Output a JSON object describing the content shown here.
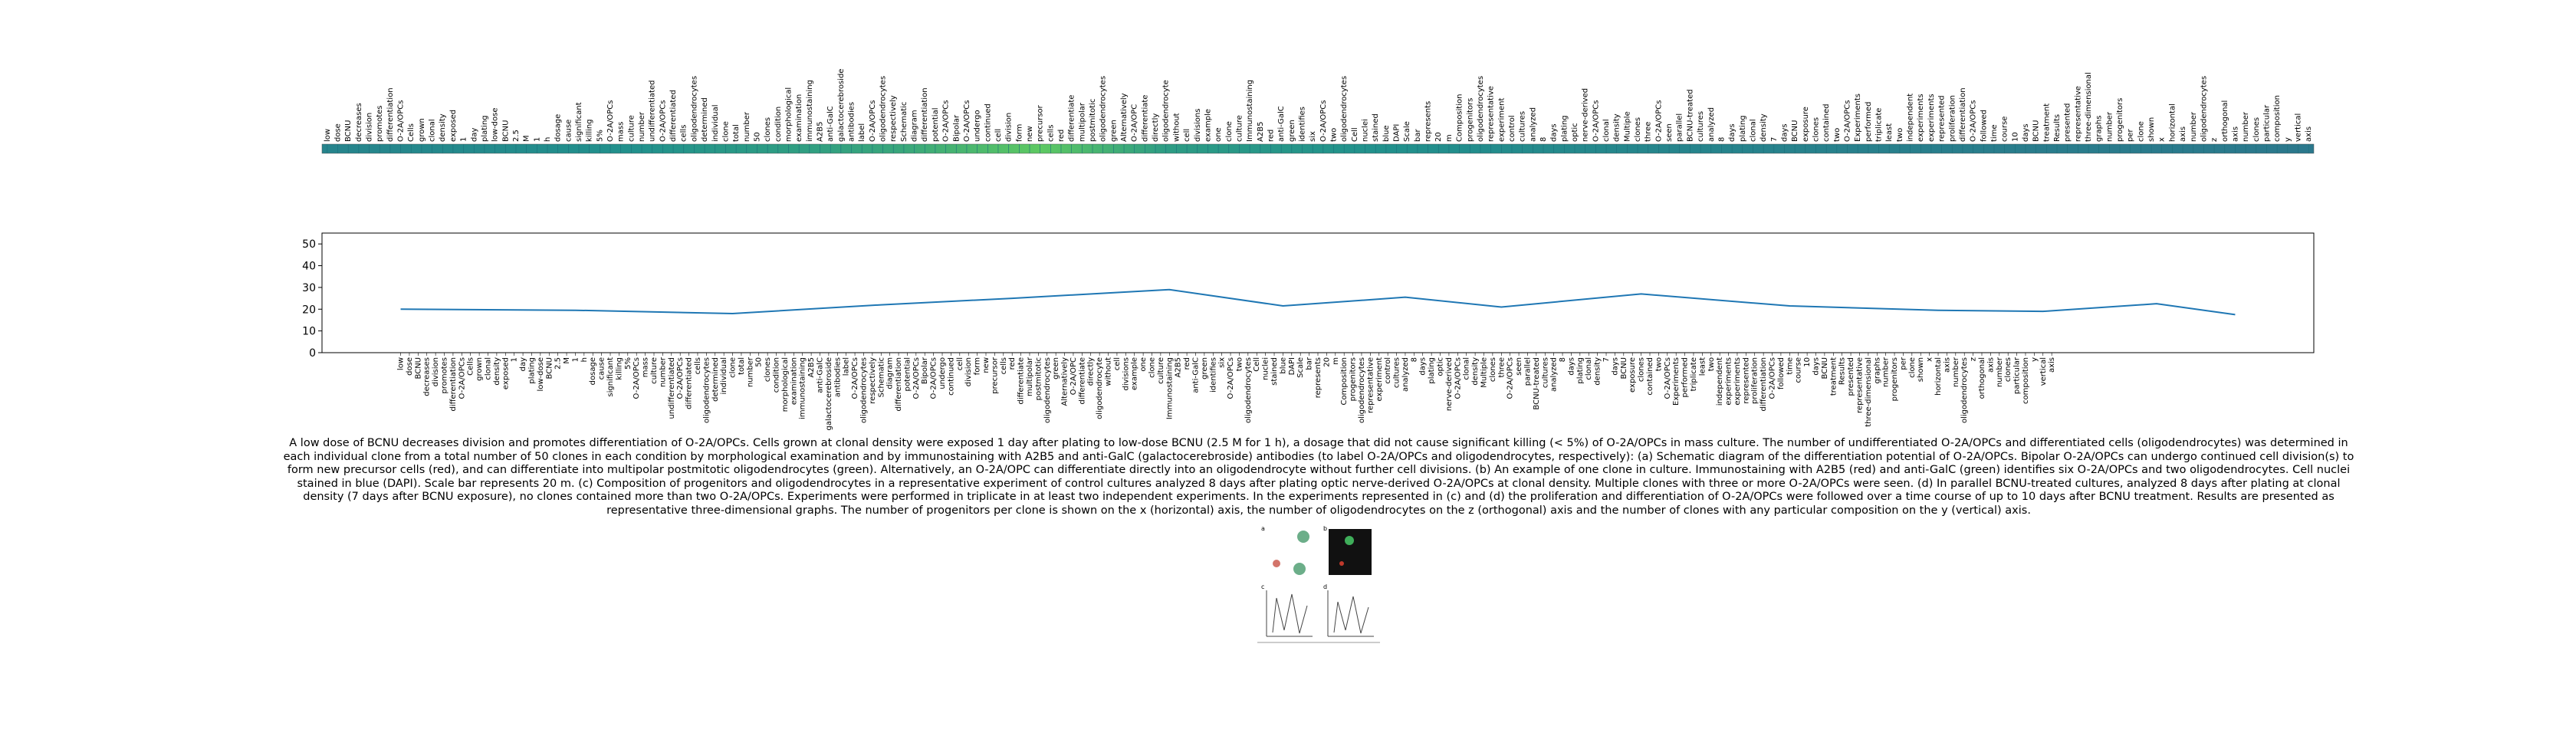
{
  "chart_data": [
    {
      "type": "heatmap",
      "x": [
        0,
        30,
        55,
        68,
        80,
        100,
        130,
        160,
        199
      ],
      "values": [
        0.45,
        0.5,
        0.6,
        0.75,
        0.55,
        0.5,
        0.45,
        0.42,
        0.4
      ],
      "clim": [
        0,
        1
      ],
      "colormap": [
        "#440154",
        "#3b528b",
        "#21918c",
        "#5ec962",
        "#fde725"
      ]
    },
    {
      "type": "line",
      "x": [
        0,
        20,
        38,
        55,
        70,
        88,
        101,
        115,
        126,
        142,
        159,
        176,
        188,
        201,
        210
      ],
      "values": [
        20,
        19.5,
        18,
        22,
        25,
        29,
        21.5,
        25.5,
        21,
        27,
        21.5,
        19.5,
        19,
        22.5,
        17.5
      ],
      "color": "#1f77b4",
      "xlim": [
        -9,
        219
      ],
      "ylim": [
        0,
        55
      ],
      "yticks": [
        0,
        10,
        20,
        30,
        40,
        50
      ]
    }
  ],
  "categories": [
    "low",
    "dose",
    "BCNU",
    "decreases",
    "division",
    "promotes",
    "differentiation",
    "O-2A/OPCs",
    "Cells",
    "grown",
    "clonal",
    "density",
    "exposed",
    "1",
    "day",
    "plating",
    "low-dose",
    "BCNU",
    "2.5",
    "M",
    "1",
    "h",
    "dosage",
    "cause",
    "significant",
    "killing",
    "5%",
    "O-2A/OPCs",
    "mass",
    "culture",
    "number",
    "undifferentiated",
    "O-2A/OPCs",
    "differentiated",
    "cells",
    "oligodendrocytes",
    "determined",
    "individual",
    "clone",
    "total",
    "number",
    "50",
    "clones",
    "condition",
    "morphological",
    "examination",
    "immunostaining",
    "A2B5",
    "anti-GalC",
    "galactocerebroside",
    "antibodies",
    "label",
    "O-2A/OPCs",
    "oligodendrocytes",
    "respectively",
    "Schematic",
    "diagram",
    "differentiation",
    "potential",
    "O-2A/OPCs",
    "Bipolar",
    "O-2A/OPCs",
    "undergo",
    "continued",
    "cell",
    "division",
    "form",
    "new",
    "precursor",
    "cells",
    "red",
    "differentiate",
    "multipolar",
    "postmitotic",
    "oligodendrocytes",
    "green",
    "Alternatively",
    "O-2A/OPC",
    "differentiate",
    "directly",
    "oligodendrocyte",
    "without",
    "cell",
    "divisions",
    "example",
    "one",
    "clone",
    "culture",
    "Immunostaining",
    "A2B5",
    "red",
    "anti-GalC",
    "green",
    "identifies",
    "six",
    "O-2A/OPCs",
    "two",
    "oligodendrocytes",
    "Cell",
    "nuclei",
    "stained",
    "blue",
    "DAPI",
    "Scale",
    "bar",
    "represents",
    "20",
    "m",
    "Composition",
    "progenitors",
    "oligodendrocytes",
    "representative",
    "experiment",
    "control",
    "cultures",
    "analyzed",
    "8",
    "days",
    "plating",
    "optic",
    "nerve-derived",
    "O-2A/OPCs",
    "clonal",
    "density",
    "Multiple",
    "clones",
    "three",
    "O-2A/OPCs",
    "seen",
    "parallel",
    "BCNU-treated",
    "cultures",
    "analyzed",
    "8",
    "days",
    "plating",
    "clonal",
    "density",
    "7",
    "days",
    "BCNU",
    "exposure",
    "clones",
    "contained",
    "two",
    "O-2A/OPCs",
    "Experiments",
    "performed",
    "triplicate",
    "least",
    "two",
    "independent",
    "experiments",
    "experiments",
    "represented",
    "proliferation",
    "differentiation",
    "O-2A/OPCs",
    "followed",
    "time",
    "course",
    "10",
    "days",
    "BCNU",
    "treatment",
    "Results",
    "presented",
    "representative",
    "three-dimensional",
    "graphs",
    "number",
    "progenitors",
    "per",
    "clone",
    "shown",
    "x",
    "horizontal",
    "axis",
    "number",
    "oligodendrocytes",
    "z",
    "orthogonal",
    "axis",
    "number",
    "clones",
    "particular",
    "composition",
    "y",
    "vertical",
    "axis"
  ],
  "caption": "A low dose of BCNU decreases division and promotes differentiation of O-2A/OPCs. Cells grown at clonal density were exposed 1 day after plating to low-dose BCNU (2.5 M for 1 h), a dosage that did not cause significant killing (< 5%) of O-2A/OPCs in mass culture. The number of undifferentiated O-2A/OPCs and differentiated cells (oligodendrocytes) was determined in each individual clone from a total number of 50 clones in each condition by morphological examination and by immunostaining with A2B5 and anti-GalC (galactocerebroside) antibodies (to label O-2A/OPCs and oligodendrocytes, respectively): (a) Schematic diagram of the differentiation potential of O-2A/OPCs. Bipolar O-2A/OPCs can undergo continued cell division(s) to form new precursor cells (red), and can differentiate into multipolar postmitotic oligodendrocytes (green). Alternatively, an O-2A/OPC can differentiate directly into an oligodendrocyte without further cell divisions. (b) An example of one clone in culture. Immunostaining with A2B5 (red) and anti-GalC (green) identifies six O-2A/OPCs and two oligodendrocytes. Cell nuclei stained in blue (DAPI). Scale bar represents 20 m. (c) Composition of progenitors and oligodendrocytes in a representative experiment of control cultures analyzed 8 days after plating optic nerve-derived O-2A/OPCs at clonal density. Multiple clones with three or more O-2A/OPCs were seen. (d) In parallel BCNU-treated cultures, analyzed 8 days after plating at clonal density (7 days after BCNU exposure), no clones contained more than two O-2A/OPCs. Experiments were performed in triplicate in at least two independent experiments. In the experiments represented in (c) and (d) the proliferation and differentiation of O-2A/OPCs were followed over a time course of up to 10 days after BCNU treatment. Results are presented as representative three-dimensional graphs. The number of progenitors per clone is shown on the x (horizontal) axis, the number of oligodendrocytes on the z (orthogonal) axis and the number of clones with any particular composition on the y (vertical) axis.",
  "figure_panels": [
    "a",
    "b",
    "c",
    "d"
  ]
}
